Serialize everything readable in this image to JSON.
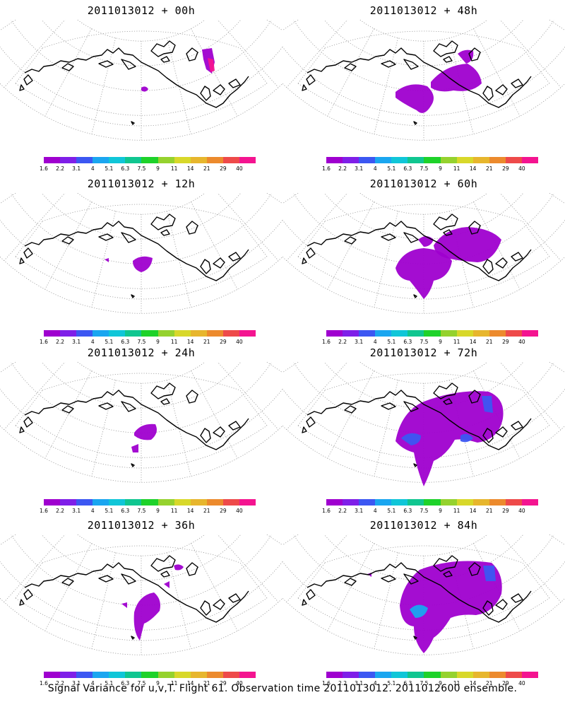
{
  "palette": [
    "#9f00cf",
    "#7f1fe8",
    "#3c57f2",
    "#1aa6f0",
    "#10c6d8",
    "#10c690",
    "#1ed22a",
    "#95d22e",
    "#d8d82a",
    "#e7b62d",
    "#ec8a2d",
    "#ee4a4a",
    "#f41490"
  ],
  "colorbar_labels": [
    "1.6",
    "2.2",
    "3.1",
    "4",
    "5.1",
    "6.3",
    "7.5",
    "9",
    "11",
    "14",
    "21",
    "29",
    "40"
  ],
  "panels": [
    {
      "title": "2011013012 + 00h"
    },
    {
      "title": "2011013012 + 48h"
    },
    {
      "title": "2011013012 + 12h"
    },
    {
      "title": "2011013012 + 60h"
    },
    {
      "title": "2011013012 + 24h"
    },
    {
      "title": "2011013012 + 72h"
    },
    {
      "title": "2011013012 + 36h"
    },
    {
      "title": "2011013012 + 84h"
    }
  ],
  "footer": "Signal Variance for u,v,T. Flight 61. Observation time 2011013012. 2011012600 ensemble."
}
